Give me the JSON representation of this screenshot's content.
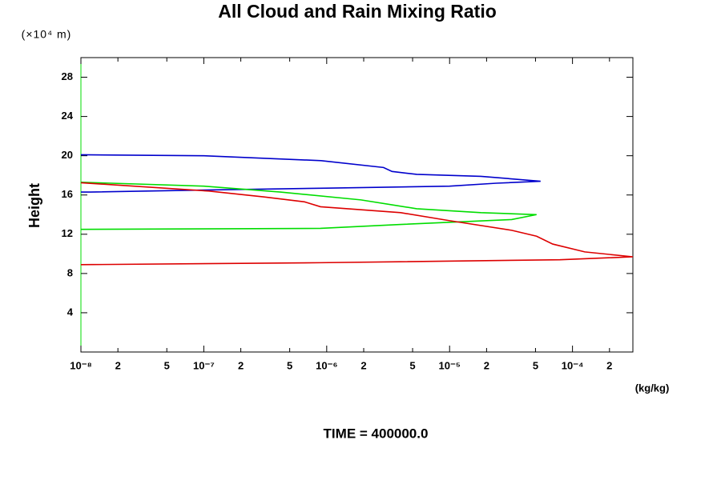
{
  "chart_data": {
    "type": "line",
    "title": "All Cloud and Rain Mixing Ratio",
    "y_units": "(×10⁴ m)",
    "y_label": "Height",
    "x_label": "(kg/kg)",
    "footer": "TIME = 400000.0",
    "xscale": "log",
    "xlim": [
      1e-08,
      0.00031
    ],
    "ylim": [
      0,
      30
    ],
    "xticks": [
      {
        "value": 1e-08,
        "label": "10⁻⁸"
      },
      {
        "value": 2e-08,
        "label": "2"
      },
      {
        "value": 5e-08,
        "label": "5"
      },
      {
        "value": 1e-07,
        "label": "10⁻⁷"
      },
      {
        "value": 2e-07,
        "label": "2"
      },
      {
        "value": 5e-07,
        "label": "5"
      },
      {
        "value": 1e-06,
        "label": "10⁻⁶"
      },
      {
        "value": 2e-06,
        "label": "2"
      },
      {
        "value": 5e-06,
        "label": "5"
      },
      {
        "value": 1e-05,
        "label": "10⁻⁵"
      },
      {
        "value": 2e-05,
        "label": "2"
      },
      {
        "value": 5e-05,
        "label": "5"
      },
      {
        "value": 0.0001,
        "label": "10⁻⁴"
      },
      {
        "value": 0.0002,
        "label": "2"
      }
    ],
    "yticks": [
      4,
      8,
      12,
      16,
      20,
      24,
      28
    ],
    "series": [
      {
        "color": "#0000cc",
        "x": [
          1e-08,
          1e-07,
          9e-07,
          2.9e-06,
          3.4e-06,
          5.4e-06,
          1.8e-05,
          5.5e-05,
          2.4e-05,
          1e-05,
          1e-06,
          1e-07,
          1.2e-08,
          1e-08
        ],
        "values": [
          20.1,
          20.0,
          19.5,
          18.8,
          18.4,
          18.1,
          17.9,
          17.4,
          17.2,
          16.9,
          16.7,
          16.5,
          16.3,
          16.3
        ]
      },
      {
        "color": "#00dd00",
        "x": [
          1e-08,
          1e-07,
          4.2e-07,
          1.9e-06,
          5.4e-06,
          1.8e-05,
          5.1e-05,
          3.2e-05,
          4e-06,
          8.9e-07,
          1e-08
        ],
        "values": [
          17.3,
          16.9,
          16.3,
          15.5,
          14.6,
          14.2,
          14.0,
          13.5,
          13.0,
          12.6,
          12.5
        ]
      },
      {
        "color": "#dd0000",
        "x": [
          1e-08,
          1.1e-07,
          3.1e-07,
          6.6e-07,
          8.9e-07,
          4e-06,
          9.8e-06,
          3.2e-05,
          5.1e-05,
          6.9e-05,
          0.000126,
          0.00031,
          7.9e-05,
          8.9e-07,
          1e-08
        ],
        "values": [
          17.25,
          16.4,
          15.8,
          15.3,
          14.8,
          14.2,
          13.4,
          12.4,
          11.8,
          11.0,
          10.2,
          9.7,
          9.4,
          9.1,
          8.9
        ]
      }
    ]
  }
}
